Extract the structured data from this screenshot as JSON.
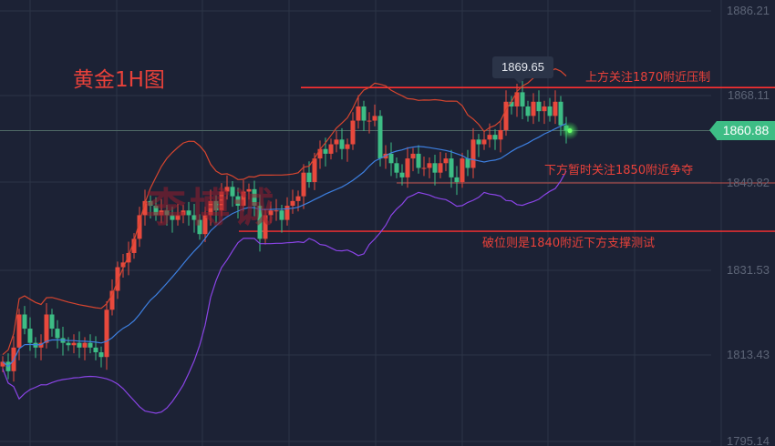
{
  "chart_data": {
    "type": "candlestick",
    "title": "黄金1H图",
    "watermark": "李博诚",
    "y_ticks": [
      "1886.21",
      "1868.11",
      "1849.82",
      "1831.53",
      "1813.43",
      "1795.14"
    ],
    "ylim": [
      1795.14,
      1886.21
    ],
    "grid": true,
    "close": [
      1812,
      1810,
      1815,
      1822,
      1819,
      1816,
      1815,
      1816,
      1822,
      1819,
      1817,
      1816,
      1815.5,
      1816,
      1815,
      1816,
      1815,
      1814,
      1813,
      1823,
      1827,
      1832,
      1833,
      1835,
      1838,
      1843,
      1846,
      1845,
      1843,
      1844,
      1843,
      1842,
      1843,
      1844,
      1843,
      1842,
      1839,
      1843,
      1846,
      1844,
      1848,
      1849,
      1847,
      1845,
      1848,
      1848.5,
      1845,
      1838,
      1843,
      1844,
      1844,
      1842,
      1845,
      1846,
      1847,
      1852,
      1850,
      1855,
      1857,
      1856,
      1858,
      1859,
      1857,
      1858,
      1863,
      1866,
      1863,
      1863,
      1864,
      1855,
      1856,
      1854,
      1852,
      1851,
      1855,
      1856,
      1853,
      1853,
      1854,
      1852,
      1854,
      1855,
      1851,
      1850,
      1855,
      1853,
      1859,
      1858,
      1859,
      1860,
      1859,
      1861,
      1867,
      1866,
      1869,
      1866,
      1864,
      1867,
      1865,
      1866,
      1864,
      1867,
      1862,
      1860.88
    ],
    "indicator": "Bollinger Bands",
    "colors": {
      "up": "#e8493d",
      "down": "#3dbd85",
      "upper_band": "#d6452f",
      "middle_band": "#3d7fe0",
      "lower_band": "#8a44e6",
      "level_line": "#ff3030"
    },
    "levels": [
      {
        "price": 1870,
        "label": "上方关注1870附近压制"
      },
      {
        "price": 1849.82,
        "label": "下方暂时关注1850附近争夺"
      },
      {
        "price": 1839.6,
        "label": "破位则是1840附近下方支撑测试"
      }
    ],
    "tooltip": "1869.65",
    "current_price": "1860.88"
  }
}
